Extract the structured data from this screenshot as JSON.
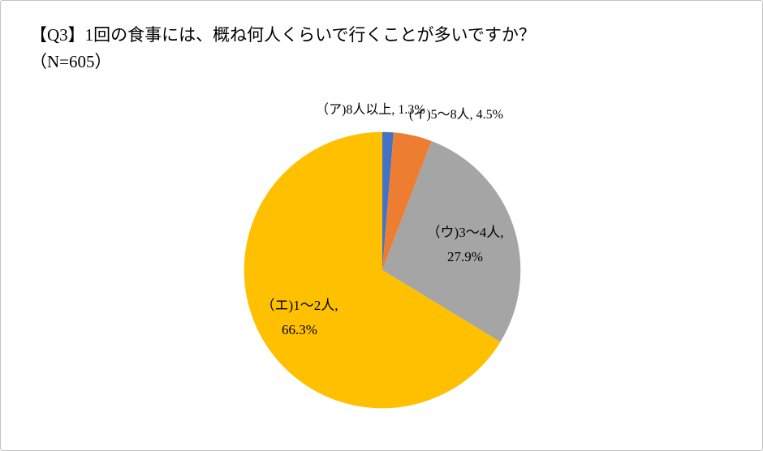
{
  "header": {
    "title": "【Q3】1回の食事には、概ね何人くらいで行くことが多いですか？",
    "sample_size": "（N=605）"
  },
  "chart_data": {
    "type": "pie",
    "n_label": "（N=605）",
    "n": 605,
    "start_angle_deg": 0,
    "direction": "clockwise",
    "legend_position": "none",
    "label_style": "data-labels-on-chart",
    "slices": [
      {
        "id": "8plus",
        "label": "（ア)8人以上",
        "value": 1.3,
        "display": "（ア)8人以上, 1.3%",
        "color": "#4472C4"
      },
      {
        "id": "5to8",
        "label": "(イ)5～8人",
        "value": 4.5,
        "display": "(イ)5～8人, 4.5%",
        "color": "#ED7D31"
      },
      {
        "id": "3to4",
        "label": "（ウ)3～4人",
        "value": 27.9,
        "display_line1": "（ウ)3～4人,",
        "display_line2": "27.9%",
        "color": "#A5A5A5"
      },
      {
        "id": "1to2",
        "label": "（エ)1～2人",
        "value": 66.3,
        "display_line1": "（エ)1～2人,",
        "display_line2": "66.3%",
        "color": "#FFC000"
      }
    ]
  }
}
